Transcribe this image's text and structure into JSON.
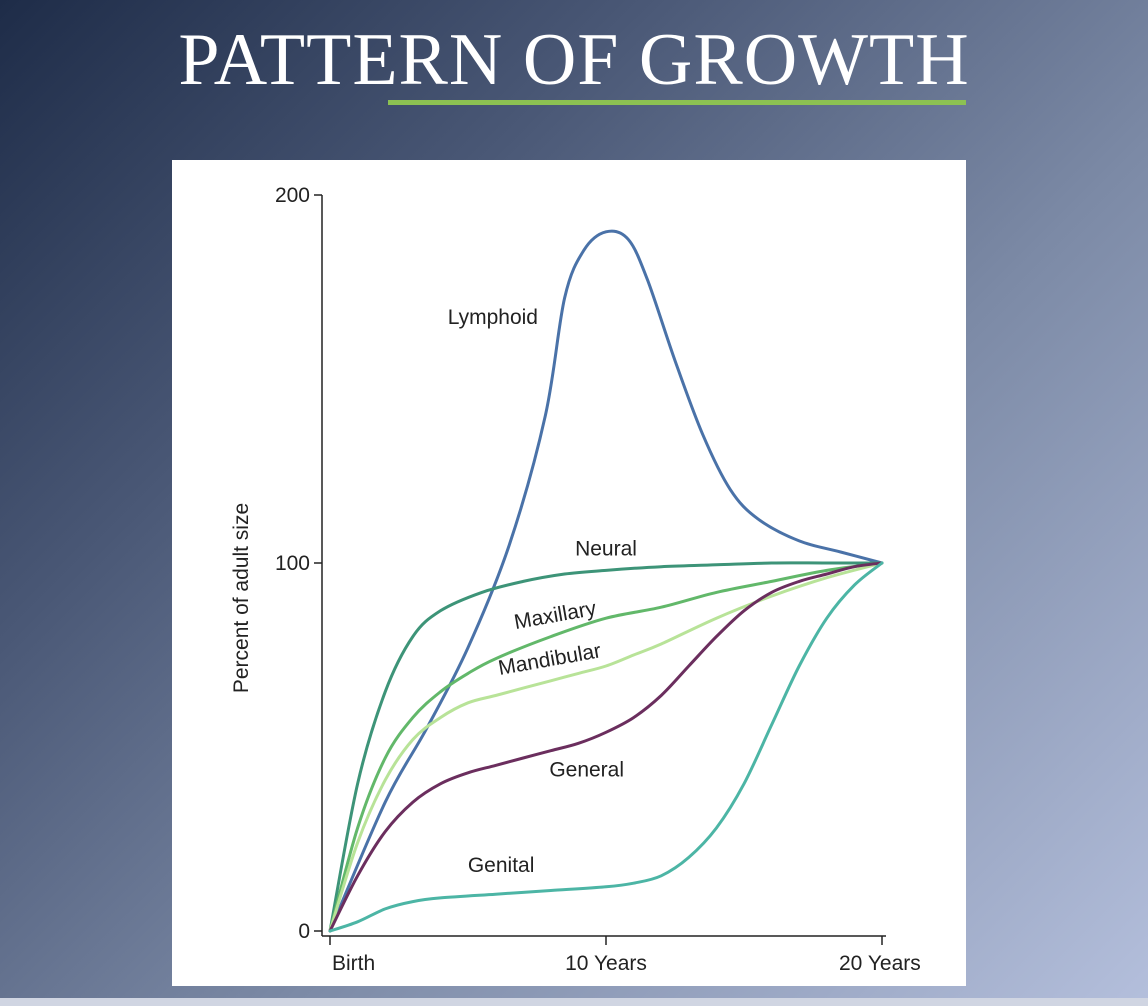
{
  "slide": {
    "title": "PATTERN OF GROWTH"
  },
  "colors": {
    "accent": "#8cc152",
    "background_dark": "#1e2c48",
    "background_light": "#b4bfdc"
  },
  "chart_data": {
    "type": "line",
    "title": "",
    "xlabel": "",
    "ylabel": "Percent of adult size",
    "xlim": [
      0,
      20
    ],
    "ylim": [
      0,
      200
    ],
    "x_ticks": [
      {
        "value": 0,
        "label": "Birth"
      },
      {
        "value": 10,
        "label": "10 Years"
      },
      {
        "value": 20,
        "label": "20 Years"
      }
    ],
    "y_ticks": [
      {
        "value": 0,
        "label": "0"
      },
      {
        "value": 100,
        "label": "100"
      },
      {
        "value": 200,
        "label": "200"
      }
    ],
    "grid": false,
    "legend": "none",
    "series": [
      {
        "name": "Lymphoid",
        "color": "#4a72a8",
        "label_at": {
          "x": 5.9,
          "y": 165
        },
        "x": [
          0,
          2,
          3.5,
          5,
          6.5,
          7.8,
          8.5,
          9.2,
          10,
          10.8,
          11.5,
          12.5,
          13.5,
          14.5,
          15.5,
          17,
          18.5,
          20
        ],
        "y": [
          0,
          35,
          55,
          77,
          105,
          140,
          172,
          185,
          190,
          188,
          177,
          155,
          135,
          120,
          112,
          106,
          103,
          100
        ]
      },
      {
        "name": "Neural",
        "color": "#3d9478",
        "label_at": {
          "x": 10,
          "y": 102
        },
        "x": [
          0,
          1,
          2,
          3,
          4,
          5.5,
          7,
          8.5,
          10,
          12,
          14,
          16,
          18,
          20
        ],
        "y": [
          0,
          40,
          65,
          80,
          87,
          92,
          95,
          97,
          98,
          99,
          99.5,
          100,
          100,
          100
        ],
        "label_rotate": 0
      },
      {
        "name": "Maxillary",
        "color": "#62b86a",
        "label_at": {
          "x": 8.2,
          "y": 84
        },
        "label_rotate": -10,
        "x": [
          0,
          1,
          2,
          3,
          4,
          5,
          6,
          8,
          10,
          12,
          14,
          16,
          18,
          20
        ],
        "y": [
          0,
          28,
          47,
          58,
          65,
          70,
          74,
          80,
          85,
          88,
          92,
          95,
          98,
          100
        ]
      },
      {
        "name": "Mandibular",
        "color": "#b8e398",
        "label_at": {
          "x": 8,
          "y": 72
        },
        "label_rotate": -10,
        "x": [
          0,
          1,
          2,
          3,
          4,
          5,
          6,
          7,
          8,
          9,
          10,
          11,
          12,
          14,
          16,
          18,
          20
        ],
        "y": [
          0,
          24,
          41,
          52,
          58,
          62,
          64,
          66,
          68,
          70,
          72,
          75,
          78,
          85,
          91,
          96,
          100
        ]
      },
      {
        "name": "General",
        "color": "#6b2e5e",
        "label_at": {
          "x": 9.3,
          "y": 42
        },
        "x": [
          0,
          1,
          2,
          3,
          4,
          5,
          6,
          7,
          8,
          9,
          10,
          11,
          12,
          13,
          14,
          15,
          16,
          17,
          18,
          19,
          20
        ],
        "y": [
          0,
          15,
          27,
          35,
          40,
          43,
          45,
          47,
          49,
          51,
          54,
          58,
          64,
          72,
          80,
          87,
          92,
          95,
          97,
          99,
          100
        ]
      },
      {
        "name": "Genital",
        "color": "#4cb5a5",
        "label_at": {
          "x": 6.2,
          "y": 16
        },
        "x": [
          0,
          1,
          2,
          3,
          4,
          6,
          8,
          10,
          11,
          12,
          13,
          14,
          15,
          16,
          17,
          18,
          19,
          20
        ],
        "y": [
          0,
          2.5,
          6,
          8,
          9,
          10,
          11,
          12,
          13,
          15,
          20,
          28,
          40,
          56,
          72,
          85,
          94,
          100
        ]
      }
    ]
  }
}
